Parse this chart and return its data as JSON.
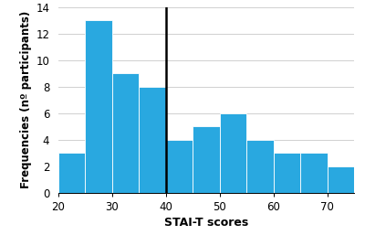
{
  "bin_left_edges": [
    20,
    25,
    30,
    35,
    40,
    45,
    50,
    55,
    60,
    65,
    70
  ],
  "bin_width": 5,
  "frequencies": [
    3,
    13,
    9,
    8,
    4,
    5,
    6,
    4,
    3,
    3,
    2
  ],
  "bar_color": "#29a8e0",
  "bar_edgecolor": "#ffffff",
  "vline_x": 40,
  "vline_color": "black",
  "vline_linewidth": 1.8,
  "xlim": [
    20,
    75
  ],
  "ylim": [
    0,
    14
  ],
  "xticks": [
    20,
    30,
    40,
    50,
    60,
    70
  ],
  "yticks": [
    0,
    2,
    4,
    6,
    8,
    10,
    12,
    14
  ],
  "xlabel": "STAI-T scores",
  "ylabel": "Frequencies (nº participants)",
  "xlabel_fontsize": 9,
  "ylabel_fontsize": 8.5,
  "tick_fontsize": 8.5,
  "background_color": "#ffffff",
  "grid_color": "#d0d0d0",
  "grid_linewidth": 0.7,
  "bar_linewidth": 0.6
}
